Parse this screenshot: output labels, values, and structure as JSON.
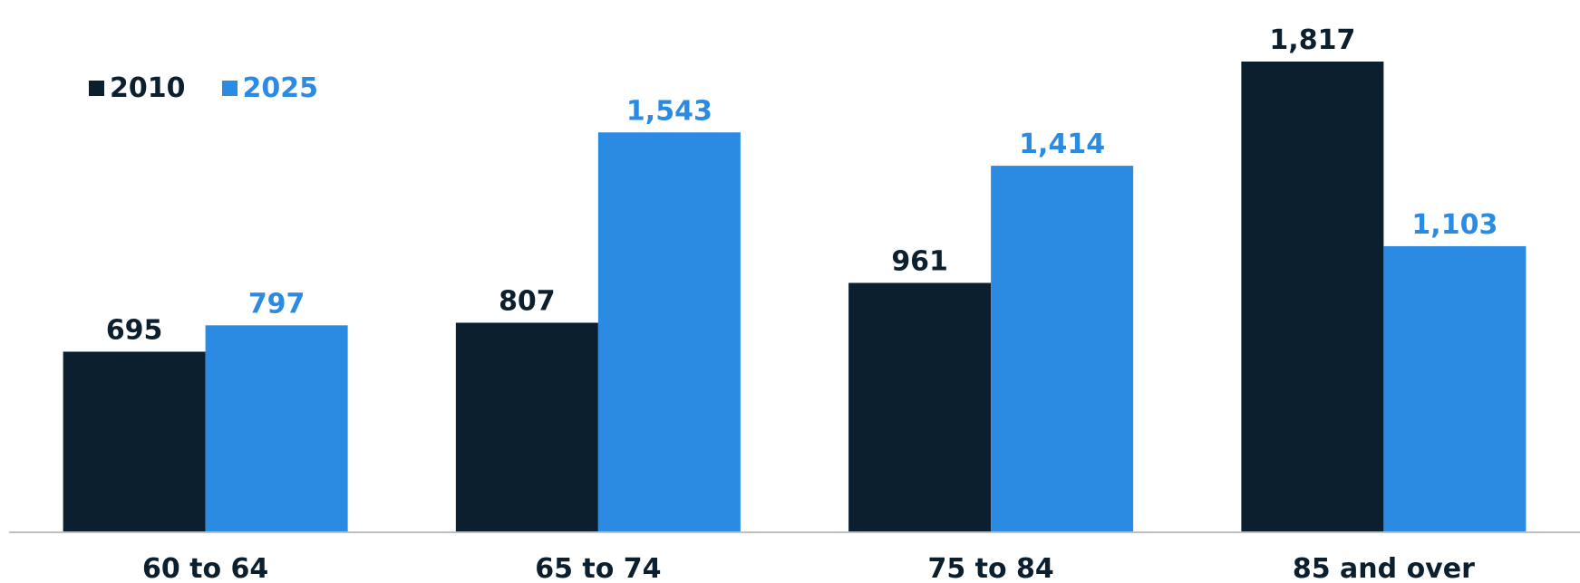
{
  "chart_data": {
    "type": "bar",
    "categories": [
      "60 to 64",
      "65 to 74",
      "75 to 84",
      "85 and over"
    ],
    "series": [
      {
        "name": "2010",
        "values": [
          695,
          807,
          961,
          1817
        ],
        "labels": [
          "695",
          "807",
          "961",
          "1,817"
        ],
        "color": "#0c1f2f"
      },
      {
        "name": "2025",
        "values": [
          797,
          1543,
          1414,
          1103
        ],
        "labels": [
          "797",
          "1,543",
          "1,414",
          "1,103"
        ],
        "color": "#2b8be3"
      }
    ],
    "title": "",
    "xlabel": "",
    "ylabel": "",
    "ylim": [
      0,
      1950
    ],
    "grid": false,
    "legend_position": "top-left",
    "axis_color": "#bfbfbf"
  }
}
